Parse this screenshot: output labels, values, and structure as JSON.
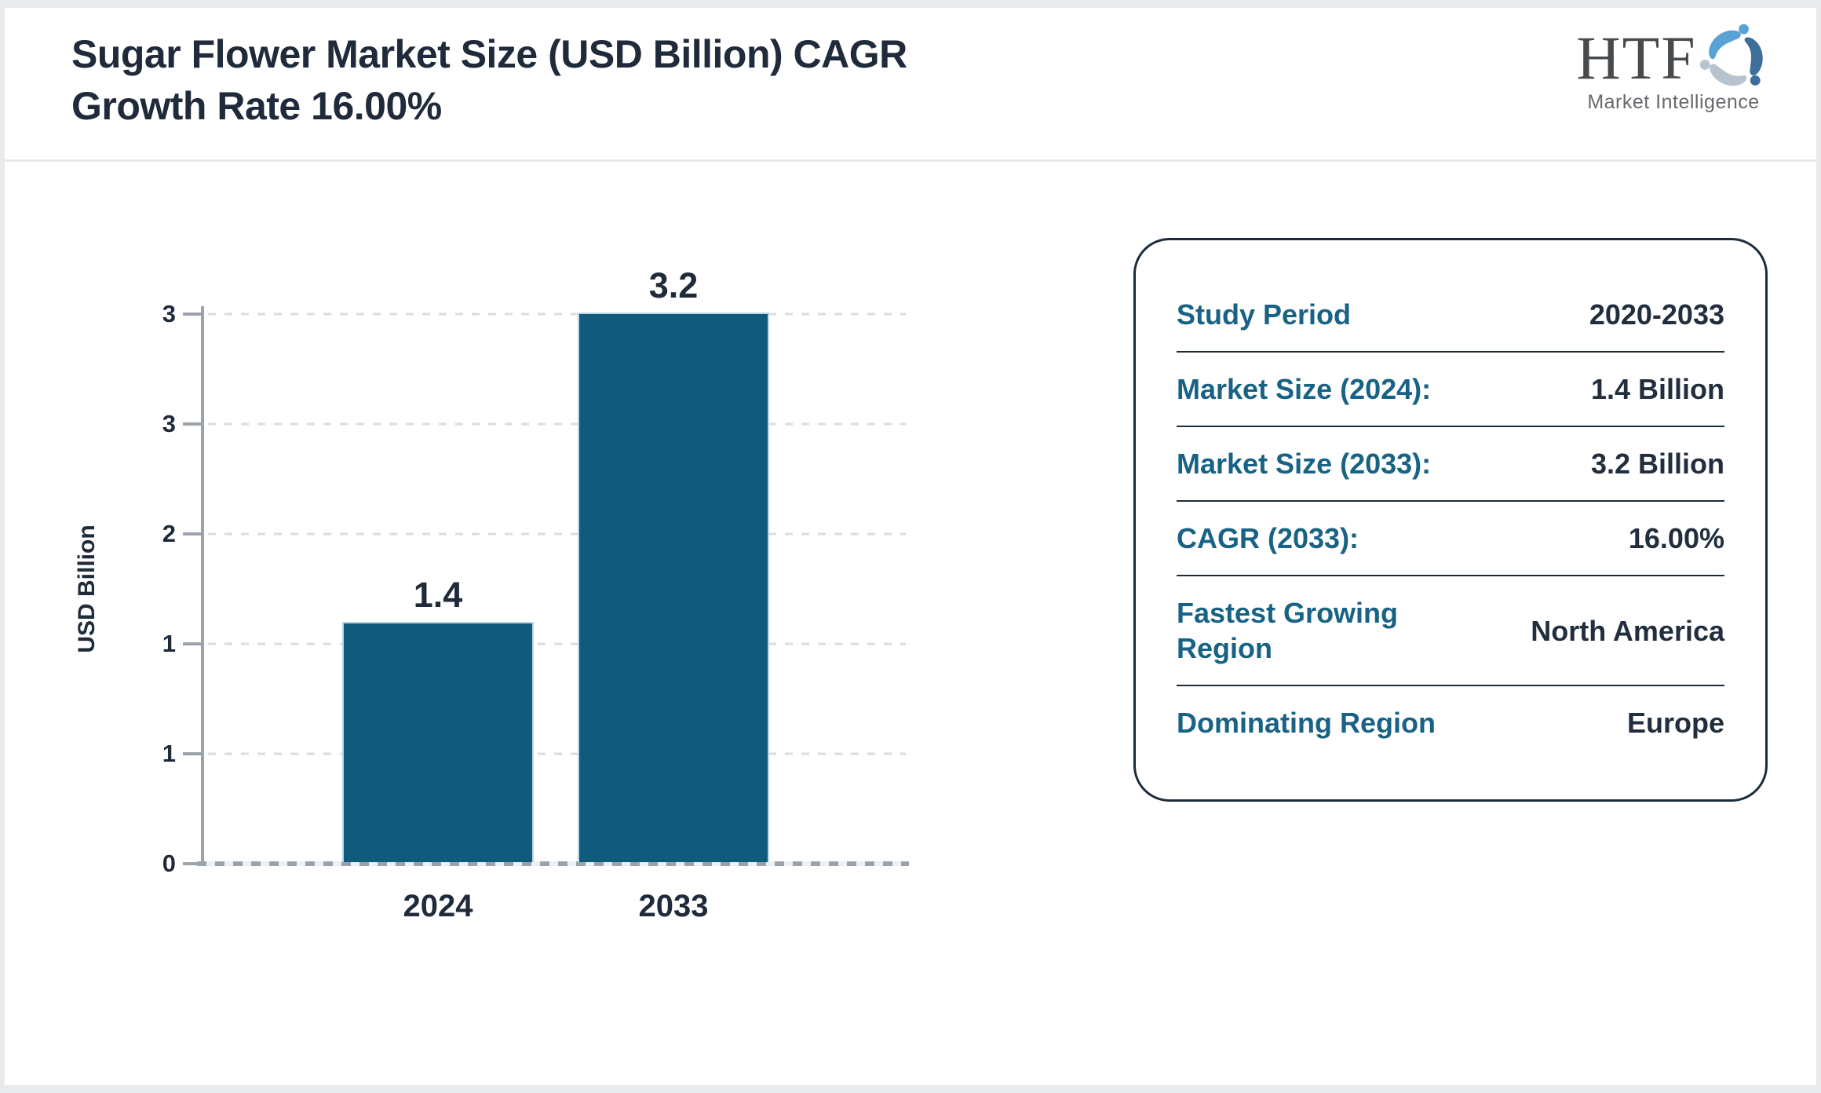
{
  "header": {
    "title_line1": "Sugar Flower Market Size (USD Billion) CAGR",
    "title_line2": "Growth Rate 16.00%"
  },
  "logo": {
    "monogram": "HTF",
    "subtitle": "Market Intelligence"
  },
  "chart_data": {
    "type": "bar",
    "title": "Sugar Flower Market Size (USD Billion) CAGR Growth Rate 16.00%",
    "categories": [
      "2024",
      "2033"
    ],
    "values": [
      1.4,
      3.2
    ],
    "bar_labels": [
      "1.4",
      "3.2"
    ],
    "xlabel": "",
    "ylabel": "USD Billion",
    "ylim": [
      0,
      3.2
    ],
    "ytick_labels_top_to_bottom": [
      "3",
      "3",
      "2",
      "1",
      "1",
      "0"
    ],
    "grid": "horizontal-dashed",
    "legend": "none"
  },
  "panel": {
    "rows": [
      {
        "label": "Study Period",
        "value": "2020-2033"
      },
      {
        "label": "Market Size (2024):",
        "value": "1.4 Billion"
      },
      {
        "label": "Market Size (2033):",
        "value": "3.2 Billion"
      },
      {
        "label": "CAGR (2033):",
        "value": "16.00%"
      },
      {
        "label": "Fastest Growing Region",
        "value": "North America"
      },
      {
        "label": "Dominating Region",
        "value": "Europe"
      }
    ]
  },
  "colors": {
    "bar_fill": "#105a7c",
    "bar_edge": "#bad7e6",
    "label_teal": "#176285",
    "text_dark": "#1f2a3a",
    "gridline": "#dadde0",
    "axis": "#9aa3ab",
    "card_border": "#1c2b3b",
    "frame": "#e8eaec",
    "logo_blue": "#5aa2d6",
    "logo_steel": "#3d6f9a",
    "logo_gray": "#b7c3ce"
  }
}
